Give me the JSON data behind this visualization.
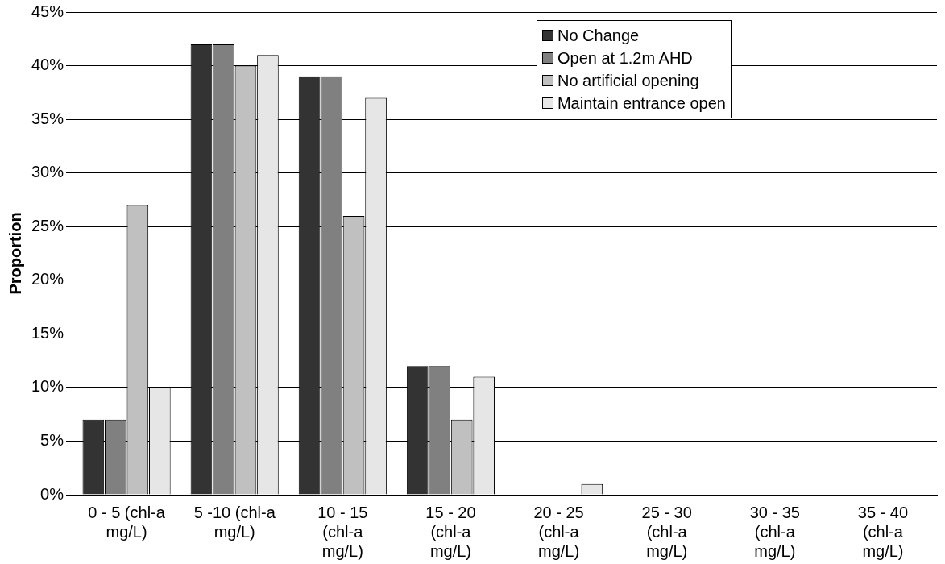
{
  "chart_data": {
    "type": "bar",
    "ylabel": "Proportion",
    "categories": [
      "0 - 5 (chl-a mg/L)",
      "5 -10 (chl-a mg/L)",
      "10 - 15 (chl-a mg/L)",
      "15 - 20 (chl-a mg/L)",
      "20 - 25 (chl-a mg/L)",
      "25 - 30 (chl-a mg/L)",
      "30 - 35 (chl-a mg/L)",
      "35 - 40 (chl-a mg/L)"
    ],
    "series": [
      {
        "name": "No Change",
        "color": "#333333",
        "values": [
          7,
          42,
          39,
          12,
          0,
          0,
          0,
          0
        ]
      },
      {
        "name": "Open at 1.2m AHD",
        "color": "#808080",
        "values": [
          7,
          42,
          39,
          12,
          0,
          0,
          0,
          0
        ]
      },
      {
        "name": "No artificial opening",
        "color": "#c0c0c0",
        "values": [
          27,
          40,
          26,
          7,
          0,
          0,
          0,
          0
        ]
      },
      {
        "name": "Maintain entrance open",
        "color": "#e6e6e6",
        "values": [
          10,
          41,
          37,
          11,
          1,
          0,
          0,
          0
        ]
      }
    ],
    "ylim": [
      0,
      45
    ],
    "yticks": [
      {
        "value": 0,
        "label": "0%"
      },
      {
        "value": 5,
        "label": "5%"
      },
      {
        "value": 10,
        "label": "10%"
      },
      {
        "value": 15,
        "label": "15%"
      },
      {
        "value": 20,
        "label": "20%"
      },
      {
        "value": 25,
        "label": "25%"
      },
      {
        "value": 30,
        "label": "30%"
      },
      {
        "value": 35,
        "label": "35%"
      },
      {
        "value": 40,
        "label": "40%"
      },
      {
        "value": 45,
        "label": "45%"
      }
    ],
    "grid": "y",
    "legend": "top right"
  }
}
